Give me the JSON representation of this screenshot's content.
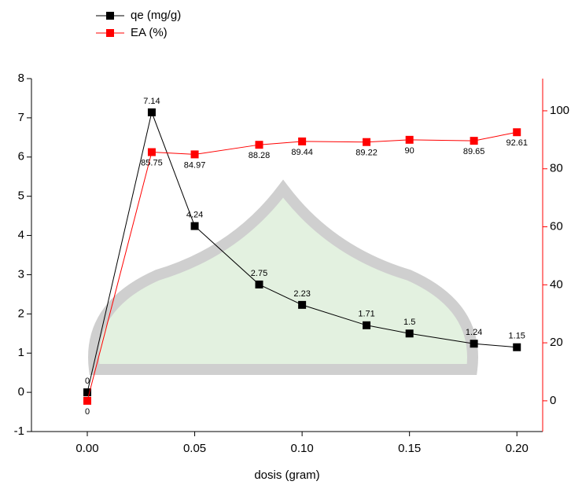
{
  "chart_data": {
    "type": "line",
    "x_label": "dosis (gram)",
    "x": [
      0,
      0.03,
      0.05,
      0.08,
      0.1,
      0.13,
      0.15,
      0.18,
      0.2
    ],
    "series": [
      {
        "name": "qe (mg/g)",
        "color": "#000000",
        "values": [
          0,
          7.14,
          4.24,
          2.75,
          2.23,
          1.71,
          1.5,
          1.24,
          1.15
        ]
      },
      {
        "name": "EA (%)",
        "color": "#ff0000",
        "axis": "y2",
        "values": [
          0,
          85.75,
          84.97,
          88.28,
          89.44,
          89.22,
          90,
          89.65,
          92.61
        ]
      }
    ],
    "xlim": [
      -0.026,
      0.212
    ],
    "xticks": [
      {
        "value": 0,
        "label": "0.00"
      },
      {
        "value": 0.05,
        "label": "0.05"
      },
      {
        "value": 0.1,
        "label": "0.10"
      },
      {
        "value": 0.15,
        "label": "0.15"
      },
      {
        "value": 0.2,
        "label": "0.20"
      }
    ],
    "ylim": [
      -1,
      8
    ],
    "yticks": [
      -1,
      0,
      1,
      2,
      3,
      4,
      5,
      6,
      7,
      8
    ],
    "y2lim": [
      -10.6,
      111.1
    ],
    "y2ticks": [
      0,
      20,
      40,
      60,
      80,
      100
    ],
    "y2_color": "#ff0000",
    "legend": "top-left"
  }
}
